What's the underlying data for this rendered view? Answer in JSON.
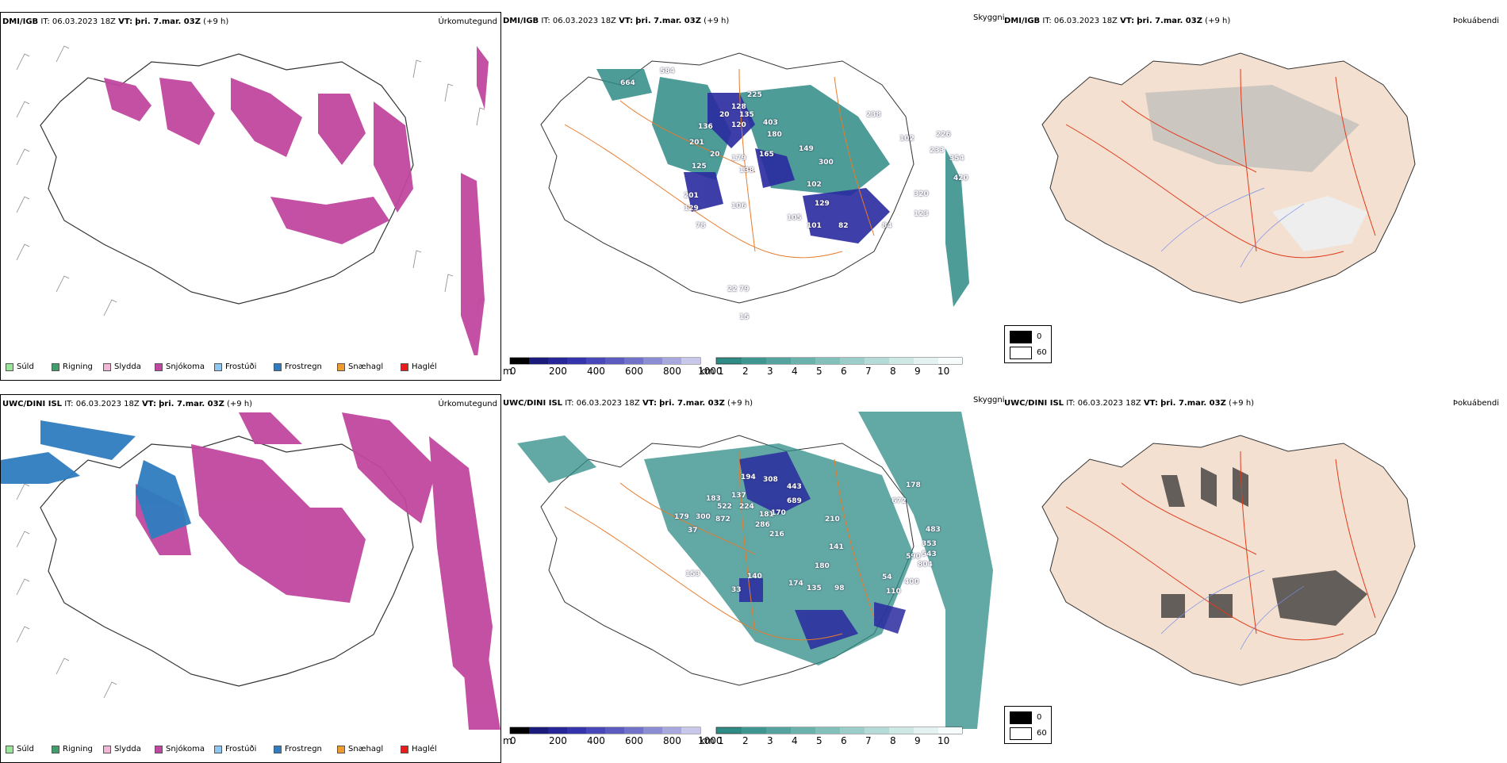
{
  "rows": [
    {
      "model": "DMI/IGB",
      "it_label": "IT:",
      "it_value": "06.03.2023 18Z",
      "vt_label": "VT:",
      "vt_value": "þri. 7.mar. 03Z",
      "lead": "(+9 h)",
      "panel_titles": {
        "precip": "Úrkomutegund",
        "cloud": "Skyggni",
        "fog": "Þokuábendi"
      },
      "cloud_numbers": [
        "664",
        "584",
        "225",
        "128",
        "20",
        "135",
        "201",
        "120",
        "403",
        "180",
        "20",
        "165",
        "179",
        "138",
        "125",
        "136",
        "149",
        "300",
        "102",
        "102",
        "226",
        "233",
        "354",
        "320",
        "420",
        "201",
        "129",
        "105",
        "129",
        "106",
        "101",
        "82",
        "84",
        "123",
        "78",
        "22",
        "79",
        "15",
        "238"
      ]
    },
    {
      "model": "UWC/DINI ISL",
      "it_label": "IT:",
      "it_value": "06.03.2023 18Z",
      "vt_label": "VT:",
      "vt_value": "þri. 7.mar. 03Z",
      "lead": "(+9 h)",
      "panel_titles": {
        "precip": "Úrkomutegund",
        "cloud": "Skyggni",
        "fog": "Þokuábendi"
      },
      "cloud_numbers": [
        "194",
        "308",
        "443",
        "137",
        "689",
        "183",
        "522",
        "224",
        "300",
        "872",
        "181",
        "170",
        "210",
        "179",
        "286",
        "216",
        "37",
        "178",
        "672",
        "483",
        "353",
        "543",
        "590",
        "804",
        "140",
        "153",
        "180",
        "174",
        "135",
        "98",
        "110",
        "54",
        "400",
        "33",
        "141"
      ]
    }
  ],
  "precip_legend": [
    {
      "label": "Súld",
      "color": "#9be59b"
    },
    {
      "label": "Rigning",
      "color": "#3f9e6b"
    },
    {
      "label": "Slydda",
      "color": "#f2b6d8"
    },
    {
      "label": "Snjókoma",
      "color": "#c0479f"
    },
    {
      "label": "Frostúði",
      "color": "#8fc6ef"
    },
    {
      "label": "Frostregn",
      "color": "#2f7dc0"
    },
    {
      "label": "Snæhagl",
      "color": "#f29a2e"
    },
    {
      "label": "Haglél",
      "color": "#e81c1c"
    }
  ],
  "cloud_base_scale": {
    "unit": "m",
    "ticks": [
      "0",
      "200",
      "400",
      "600",
      "800",
      "1000"
    ]
  },
  "visibility_scale": {
    "unit": "km",
    "ticks": [
      "1",
      "2",
      "3",
      "4",
      "5",
      "6",
      "7",
      "8",
      "9",
      "10"
    ]
  },
  "fog_scale": {
    "ticks": [
      "0",
      "60"
    ]
  },
  "colors": {
    "snow": "#c0479f",
    "freezing_rain": "#2f7dc0",
    "cloud_low": "#2a2aa0",
    "visibility": "#2e8b86",
    "land": "#f3e0d0",
    "roads": "#e87a2a"
  }
}
